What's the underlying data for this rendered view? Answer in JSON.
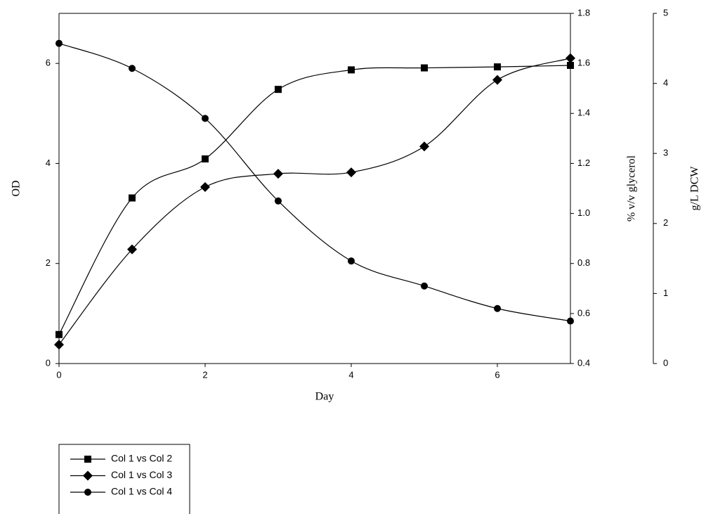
{
  "chart_data": {
    "type": "line",
    "x_label": "Day",
    "y_label": "OD",
    "y2_label": "% v/v glycerol",
    "y3_label": "g/L DCW",
    "x": [
      0,
      1,
      2,
      3,
      4,
      5,
      6,
      7
    ],
    "xlim": [
      0,
      7
    ],
    "xticks": [
      0,
      2,
      4,
      6
    ],
    "ylim": [
      0,
      7
    ],
    "yticks": [
      0,
      2,
      4,
      6
    ],
    "y2lim": [
      0.4,
      1.8
    ],
    "y2ticks": [
      0.4,
      0.6,
      0.8,
      {
        "value": 1,
        "label": "1.0"
      },
      1.2,
      1.4,
      1.6,
      1.8
    ],
    "y3lim": [
      0,
      5
    ],
    "y3ticks": [
      0,
      1,
      2,
      3,
      4,
      5
    ],
    "smooth": true,
    "series": [
      {
        "name": "Col 1 vs Col 2",
        "color": "#000000",
        "marker": "square",
        "axis": "y",
        "values": [
          0.58,
          3.31,
          4.09,
          5.48,
          5.87,
          5.91,
          5.93,
          5.96
        ]
      },
      {
        "name": "Col 1 vs Col 3",
        "color": "#000000",
        "marker": "diamond",
        "axis": "y3",
        "values": [
          0.27,
          1.63,
          2.52,
          2.71,
          2.73,
          3.1,
          4.05,
          4.36
        ]
      },
      {
        "name": "Col 1 vs Col 4",
        "color": "#000000",
        "marker": "circle",
        "axis": "y2",
        "values": [
          1.68,
          1.58,
          1.38,
          1.05,
          0.81,
          0.71,
          0.62,
          0.57
        ]
      }
    ]
  }
}
